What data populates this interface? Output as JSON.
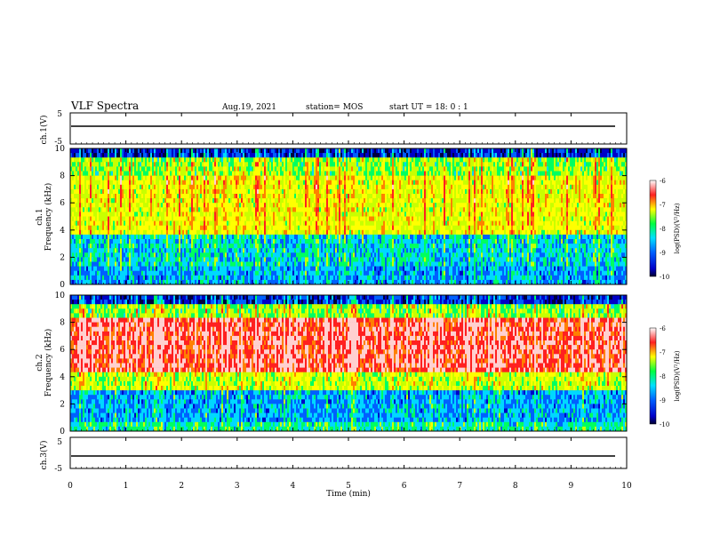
{
  "header": {
    "title": "VLF Spectra",
    "date": "Aug.19, 2021",
    "station": "station= MOS",
    "start": "start  UT =   18: 0  : 1"
  },
  "chart_data": [
    {
      "type": "line",
      "name": "ch1-waveform",
      "ylabel": "ch.1(V)",
      "yticks": [
        "5",
        "-5"
      ],
      "ylim": [
        -5,
        5
      ],
      "x": [
        0,
        10
      ],
      "values": [
        0,
        0
      ]
    },
    {
      "type": "heatmap",
      "name": "ch1-spectrogram",
      "ylabel": "ch.1\nFrequency (kHz)",
      "yticks": [
        "0",
        "2",
        "4",
        "6",
        "8",
        "10"
      ],
      "ylim": [
        0,
        10
      ],
      "xlim": [
        0,
        9.8
      ],
      "colorbar": {
        "label": "log(PSD)(V²/Hz)",
        "ticks": [
          "-6",
          "-7",
          "-8",
          "-9",
          "-10"
        ],
        "range": [
          -10,
          -6
        ]
      }
    },
    {
      "type": "heatmap",
      "name": "ch2-spectrogram",
      "ylabel": "ch.2\nFrequency (kHz)",
      "yticks": [
        "0",
        "2",
        "4",
        "6",
        "8",
        "10"
      ],
      "ylim": [
        0,
        10
      ],
      "xlim": [
        0,
        9.8
      ],
      "colorbar": {
        "label": "log(PSD)(V²/Hz)",
        "ticks": [
          "-6",
          "-7",
          "-8",
          "-9",
          "-10"
        ],
        "range": [
          -10,
          -6
        ]
      }
    },
    {
      "type": "line",
      "name": "ch3-waveform",
      "ylabel": "ch.3(V)",
      "yticks": [
        "5",
        "-5"
      ],
      "ylim": [
        -5,
        5
      ],
      "x": [
        0,
        10
      ],
      "values": [
        0,
        0
      ]
    }
  ],
  "xaxis": {
    "label": "Time  (min)",
    "ticks": [
      "0",
      "1",
      "2",
      "3",
      "4",
      "5",
      "6",
      "7",
      "8",
      "9",
      "10"
    ],
    "range": [
      0,
      10
    ]
  },
  "colorbar_colors": [
    "#000040",
    "#0000ff",
    "#00c8ff",
    "#00ff60",
    "#ffff00",
    "#ff2020",
    "#ffffff"
  ]
}
